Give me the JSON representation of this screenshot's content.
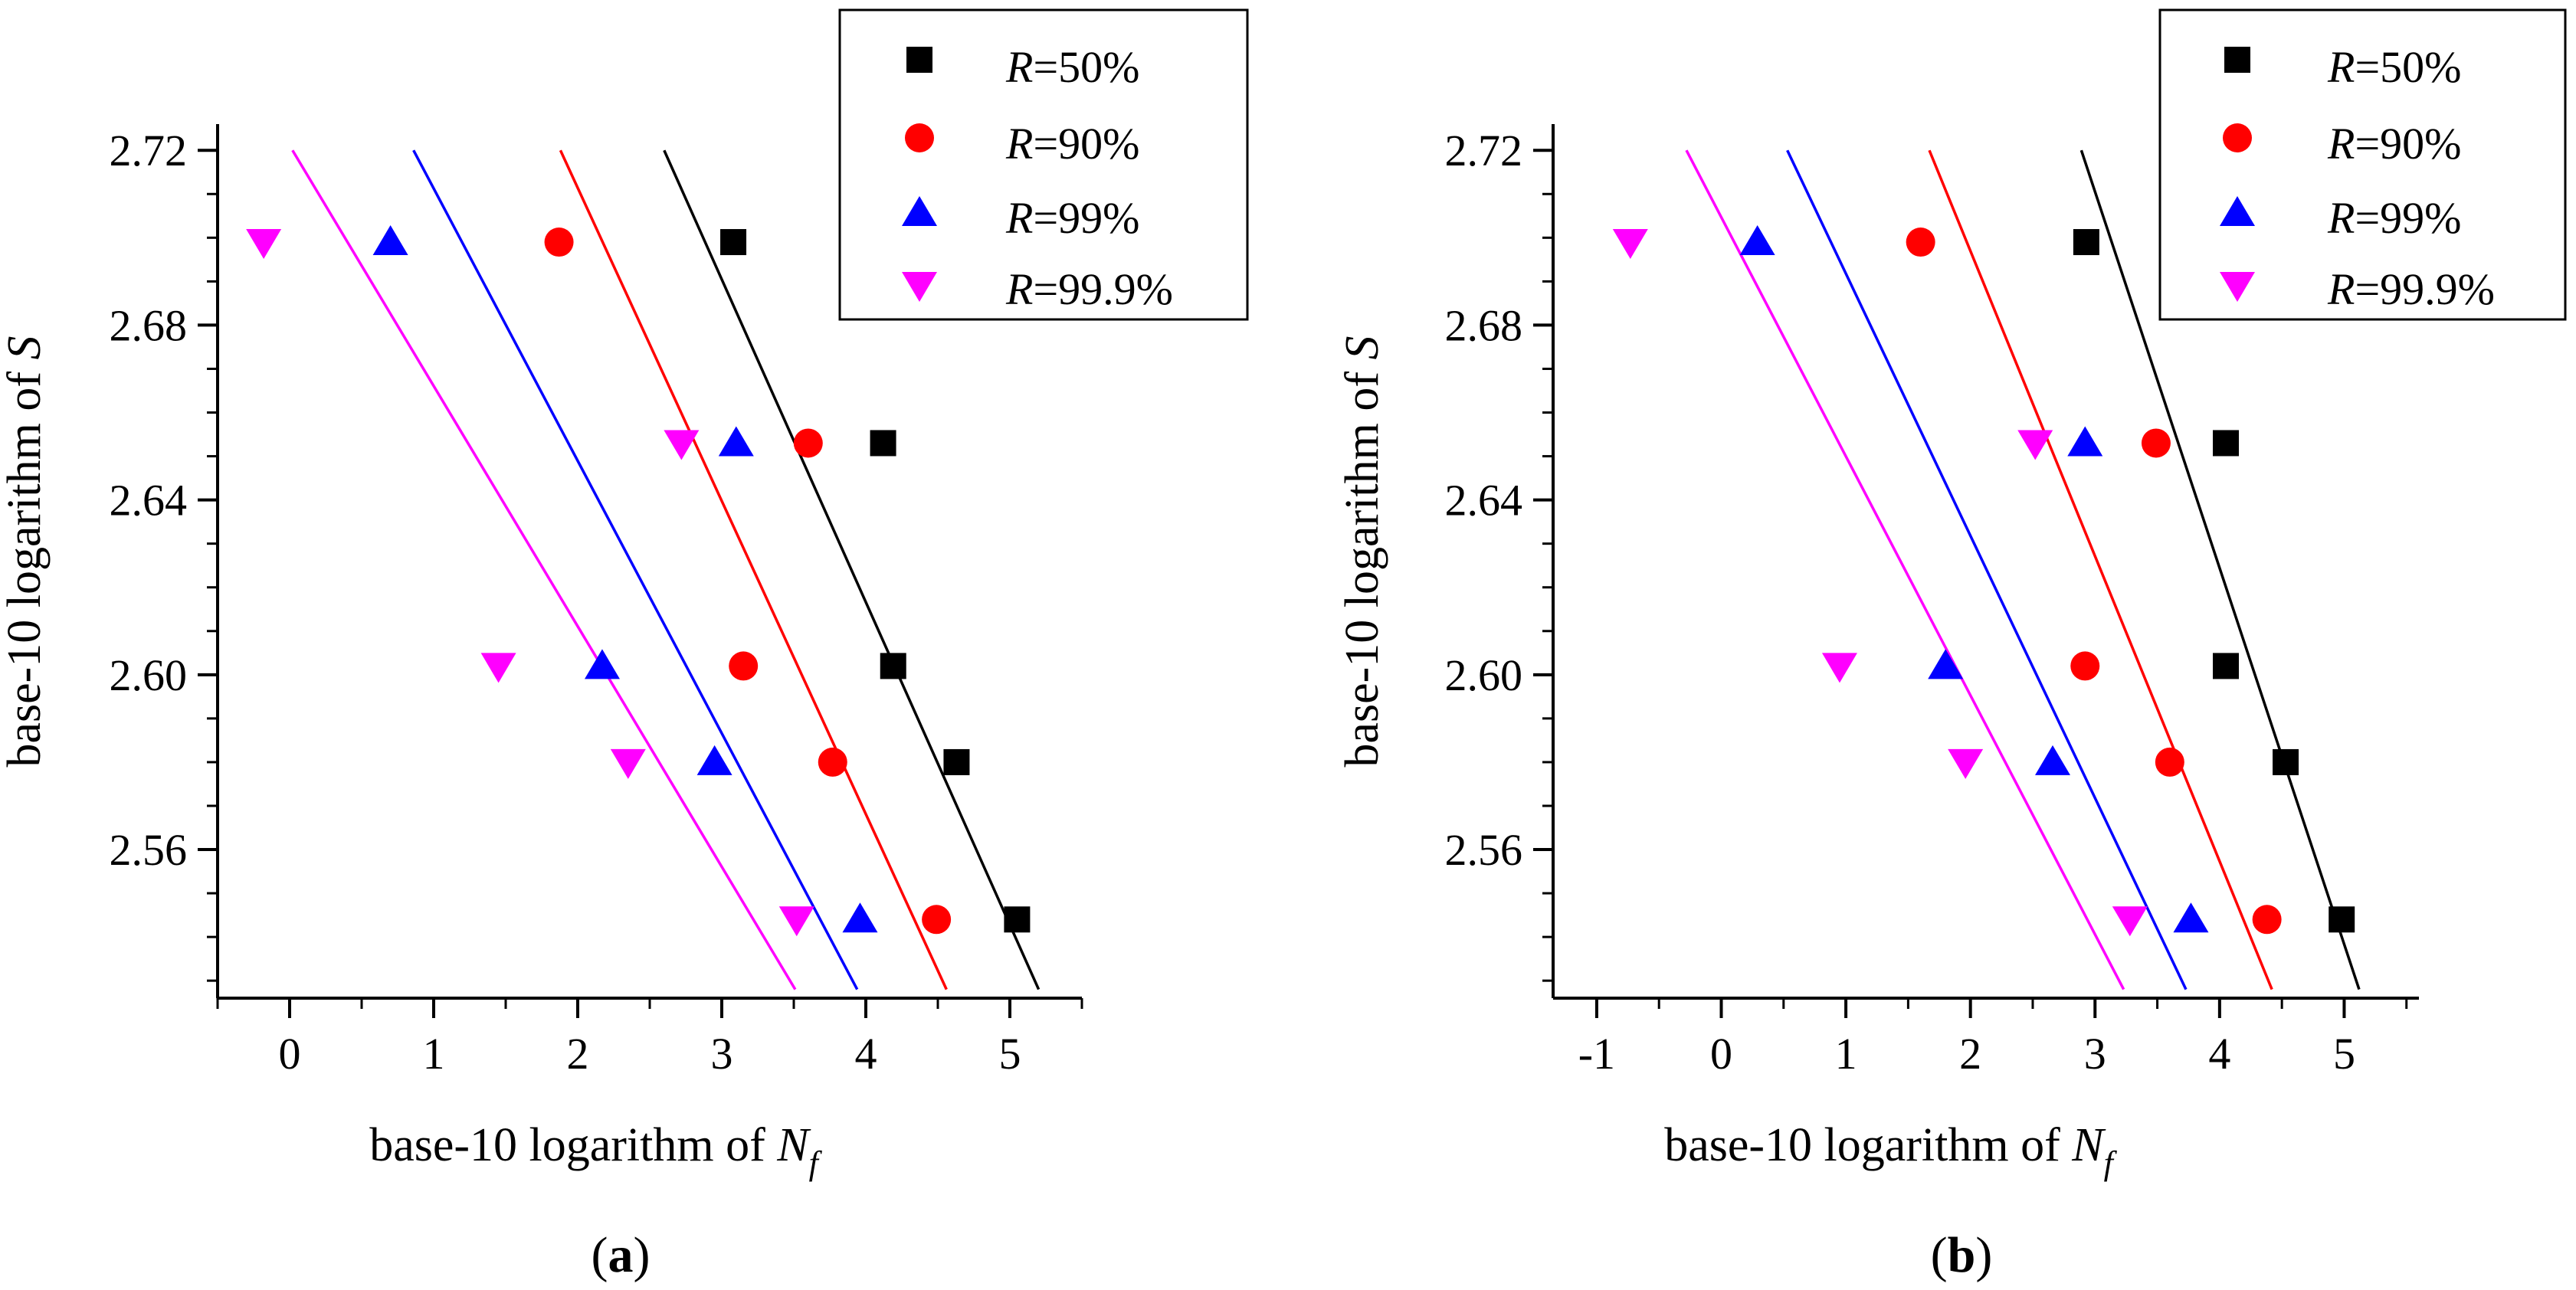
{
  "chart_data": [
    {
      "type": "scatter",
      "panel_label": "a",
      "xlabel": {
        "main": "base-10 logarithm of ",
        "symbol": "N",
        "subscript": "f"
      },
      "ylabel": {
        "main": "base-10 logarithm of ",
        "symbol": "S"
      },
      "xlim": [
        -0.5,
        5.5
      ],
      "ylim": [
        2.526,
        2.726
      ],
      "xticks": [
        0,
        1,
        2,
        3,
        4,
        5
      ],
      "xtick_labels": [
        "0",
        "1",
        "2",
        "3",
        "4",
        "5"
      ],
      "yticks": [
        2.56,
        2.6,
        2.64,
        2.68,
        2.72
      ],
      "ytick_labels": [
        "2.56",
        "2.60",
        "2.64",
        "2.68",
        "2.72"
      ],
      "legend_position": "top-right",
      "series": [
        {
          "name": "R=50%",
          "legend_symbol": "R",
          "legend_value": "=50%",
          "marker": "square",
          "color": "#000000",
          "x": [
            3.08,
            4.12,
            4.19,
            4.63,
            5.05
          ],
          "y": [
            2.699,
            2.653,
            2.602,
            2.58,
            2.544
          ],
          "line": {
            "x": [
              2.6,
              5.2
            ],
            "y": [
              2.72,
              2.528
            ]
          }
        },
        {
          "name": "R=90%",
          "legend_symbol": "R",
          "legend_value": "=90%",
          "marker": "circle",
          "color": "#ff0000",
          "x": [
            1.87,
            3.6,
            3.15,
            3.77,
            4.49
          ],
          "y": [
            2.699,
            2.653,
            2.602,
            2.58,
            2.544
          ],
          "line": {
            "x": [
              1.88,
              4.56
            ],
            "y": [
              2.72,
              2.528
            ]
          }
        },
        {
          "name": "R=99%",
          "legend_symbol": "R",
          "legend_value": "=99%",
          "marker": "triangle-up",
          "color": "#0000ff",
          "x": [
            0.7,
            3.1,
            2.17,
            2.95,
            3.96
          ],
          "y": [
            2.699,
            2.653,
            2.602,
            2.58,
            2.544
          ],
          "line": {
            "x": [
              0.86,
              3.94
            ],
            "y": [
              2.72,
              2.528
            ]
          }
        },
        {
          "name": "R=99.9%",
          "legend_symbol": "R",
          "legend_value": "=99.9%",
          "marker": "triangle-down",
          "color": "#ff00ff",
          "x": [
            -0.18,
            2.72,
            1.45,
            2.35,
            3.52
          ],
          "y": [
            2.699,
            2.653,
            2.602,
            2.58,
            2.544
          ],
          "line": {
            "x": [
              0.02,
              3.51
            ],
            "y": [
              2.72,
              2.528
            ]
          }
        }
      ]
    },
    {
      "type": "scatter",
      "panel_label": "b",
      "xlabel": {
        "main": "base-10 logarithm of ",
        "symbol": "N",
        "subscript": "f"
      },
      "ylabel": {
        "main": "base-10 logarithm of ",
        "symbol": "S"
      },
      "xlim": [
        -1.35,
        5.6
      ],
      "ylim": [
        2.526,
        2.726
      ],
      "xticks": [
        -1,
        0,
        1,
        2,
        3,
        4,
        5
      ],
      "xtick_labels": [
        "-1",
        "0",
        "1",
        "2",
        "3",
        "4",
        "5"
      ],
      "yticks": [
        2.56,
        2.6,
        2.64,
        2.68,
        2.72
      ],
      "ytick_labels": [
        "2.56",
        "2.60",
        "2.64",
        "2.68",
        "2.72"
      ],
      "legend_position": "top-right",
      "series": [
        {
          "name": "R=50%",
          "legend_symbol": "R",
          "legend_value": "=50%",
          "marker": "square",
          "color": "#000000",
          "x": [
            2.93,
            4.05,
            4.05,
            4.53,
            4.98
          ],
          "y": [
            2.699,
            2.653,
            2.602,
            2.58,
            2.544
          ],
          "line": {
            "x": [
              2.89,
              5.12
            ],
            "y": [
              2.72,
              2.528
            ]
          }
        },
        {
          "name": "R=90%",
          "legend_symbol": "R",
          "legend_value": "=90%",
          "marker": "circle",
          "color": "#ff0000",
          "x": [
            1.6,
            3.49,
            2.92,
            3.6,
            4.38
          ],
          "y": [
            2.699,
            2.653,
            2.602,
            2.58,
            2.544
          ],
          "line": {
            "x": [
              1.67,
              4.42
            ],
            "y": [
              2.72,
              2.528
            ]
          }
        },
        {
          "name": "R=99%",
          "legend_symbol": "R",
          "legend_value": "=99%",
          "marker": "triangle-up",
          "color": "#0000ff",
          "x": [
            0.29,
            2.92,
            1.8,
            2.66,
            3.77
          ],
          "y": [
            2.699,
            2.653,
            2.602,
            2.58,
            2.544
          ],
          "line": {
            "x": [
              0.53,
              3.73
            ],
            "y": [
              2.72,
              2.528
            ]
          }
        },
        {
          "name": "R=99.9%",
          "legend_symbol": "R",
          "legend_value": "=99.9%",
          "marker": "triangle-down",
          "color": "#ff00ff",
          "x": [
            -0.73,
            2.52,
            0.95,
            1.96,
            3.28
          ],
          "y": [
            2.699,
            2.653,
            2.602,
            2.58,
            2.544
          ],
          "line": {
            "x": [
              -0.28,
              3.23
            ],
            "y": [
              2.72,
              2.528
            ]
          }
        }
      ]
    }
  ]
}
